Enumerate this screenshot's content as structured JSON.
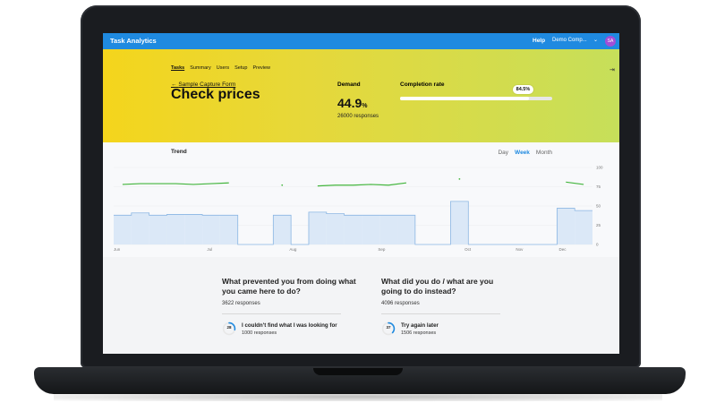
{
  "app": {
    "brand": "Task Analytics",
    "help": "Help",
    "company": "Demo Comp...",
    "avatar": "SA"
  },
  "hero": {
    "tabs": [
      "Tasks",
      "Summary",
      "Users",
      "Setup",
      "Preview"
    ],
    "active_tab": "Tasks",
    "back_link": "Sample Capture Form",
    "title": "Check prices",
    "demand": {
      "label": "Demand",
      "value": "44.9",
      "unit": "%",
      "responses": "26000 responses"
    },
    "completion": {
      "label": "Completion rate",
      "value_text": "84.5",
      "unit": "%",
      "value": 84.5
    }
  },
  "trend": {
    "title": "Trend",
    "ranges": [
      "Day",
      "Week",
      "Month"
    ],
    "active": "Week"
  },
  "questions": [
    {
      "title": "What prevented you from doing what you came here to do?",
      "responses": "3622 responses",
      "top_option": {
        "percent_text": "28",
        "percent": 28,
        "label": "I couldn't find what I was looking for",
        "responses": "1000 responses"
      }
    },
    {
      "title": "What did you do / what are you going to do instead?",
      "responses": "4096 responses",
      "top_option": {
        "percent_text": "37",
        "percent": 37,
        "label": "Try again later",
        "responses": "1506 responses"
      }
    }
  ],
  "chart_data": {
    "type": "area",
    "x_ticks": [
      "Jun",
      "Jul",
      "Aug",
      "Sep",
      "Oct",
      "Nov",
      "Dec"
    ],
    "y_ticks": [
      "100",
      "75",
      "50",
      "25",
      "0"
    ],
    "ylim": [
      0,
      100
    ],
    "series": [
      {
        "type": "line",
        "values": [
          78,
          79,
          79,
          79,
          78,
          79,
          80,
          null,
          null,
          77,
          null,
          76,
          77,
          77,
          78,
          77,
          80,
          null,
          null,
          85,
          null,
          null,
          null,
          null,
          null,
          81,
          78
        ]
      },
      {
        "type": "area",
        "values": [
          38,
          41,
          38,
          39,
          39,
          38,
          38,
          0,
          0,
          38,
          0,
          42,
          40,
          38,
          38,
          38,
          38,
          0,
          0,
          56,
          0,
          0,
          0,
          0,
          0,
          47,
          44
        ]
      }
    ],
    "colors": {
      "line": "#43b53d",
      "area_fill": "#dbe8f7",
      "area_stroke": "#8bb6e3"
    }
  }
}
